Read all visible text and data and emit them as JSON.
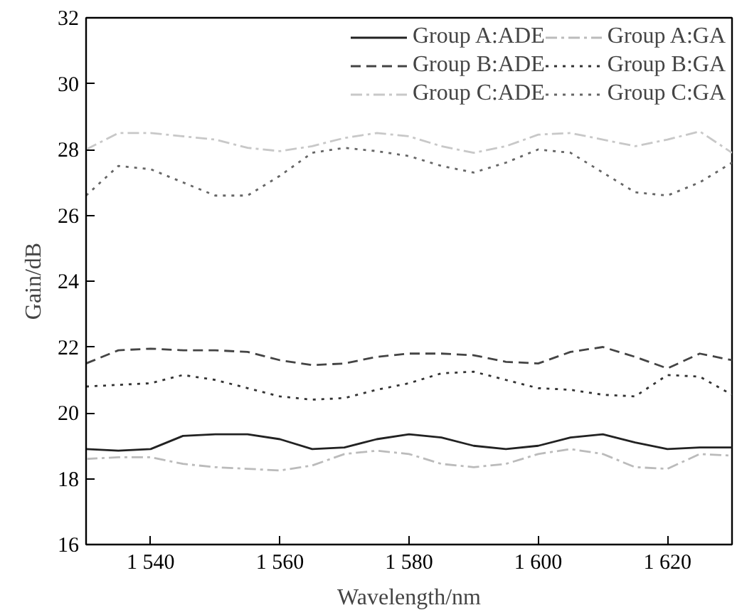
{
  "chart_data": {
    "type": "line",
    "xlabel": "Wavelength/nm",
    "ylabel": "Gain/dB",
    "x": [
      1530,
      1535,
      1540,
      1545,
      1550,
      1555,
      1560,
      1565,
      1570,
      1575,
      1580,
      1585,
      1590,
      1595,
      1600,
      1605,
      1610,
      1615,
      1620,
      1625,
      1630
    ],
    "series": [
      {
        "name": "Group A:ADE",
        "color": "#222222",
        "line_style": "solid",
        "values": [
          18.9,
          18.85,
          18.9,
          19.3,
          19.35,
          19.35,
          19.2,
          18.9,
          18.95,
          19.2,
          19.35,
          19.25,
          19.0,
          18.9,
          19.0,
          19.25,
          19.35,
          19.1,
          18.9,
          18.95,
          18.95
        ]
      },
      {
        "name": "Group B:ADE",
        "color": "#444444",
        "line_style": "dashed",
        "values": [
          21.5,
          21.9,
          21.95,
          21.9,
          21.9,
          21.85,
          21.6,
          21.45,
          21.5,
          21.7,
          21.8,
          21.8,
          21.75,
          21.55,
          21.5,
          21.85,
          22.0,
          21.7,
          21.35,
          21.8,
          21.6
        ]
      },
      {
        "name": "Group C:ADE",
        "color": "#c8c8c8",
        "line_style": "dashdot",
        "values": [
          28.0,
          28.5,
          28.5,
          28.4,
          28.3,
          28.05,
          27.95,
          28.1,
          28.35,
          28.5,
          28.4,
          28.1,
          27.9,
          28.1,
          28.45,
          28.5,
          28.3,
          28.1,
          28.3,
          28.55,
          27.9
        ]
      },
      {
        "name": "Group A:GA",
        "color": "#bbbbbb",
        "line_style": "dashdot",
        "values": [
          18.6,
          18.65,
          18.65,
          18.45,
          18.35,
          18.3,
          18.25,
          18.4,
          18.75,
          18.85,
          18.75,
          18.45,
          18.35,
          18.45,
          18.75,
          18.9,
          18.75,
          18.35,
          18.3,
          18.75,
          18.7
        ]
      },
      {
        "name": "Group B:GA",
        "color": "#333333",
        "line_style": "dotted",
        "values": [
          20.8,
          20.85,
          20.9,
          21.15,
          21.0,
          20.75,
          20.5,
          20.4,
          20.45,
          20.7,
          20.9,
          21.2,
          21.25,
          21.0,
          20.75,
          20.7,
          20.55,
          20.5,
          21.15,
          21.1,
          20.55
        ]
      },
      {
        "name": "Group C:GA",
        "color": "#666666",
        "line_style": "dotted",
        "values": [
          26.6,
          27.5,
          27.4,
          27.0,
          26.6,
          26.6,
          27.2,
          27.9,
          28.05,
          27.95,
          27.8,
          27.5,
          27.3,
          27.6,
          28.0,
          27.9,
          27.3,
          26.7,
          26.6,
          27.0,
          27.6
        ]
      }
    ],
    "xlim": [
      1530,
      1630
    ],
    "xticks": [
      {
        "value": 1540,
        "label": "1 540"
      },
      {
        "value": 1560,
        "label": "1 560"
      },
      {
        "value": 1580,
        "label": "1 580"
      },
      {
        "value": 1600,
        "label": "1 600"
      },
      {
        "value": 1620,
        "label": "1 620"
      }
    ],
    "ylim": [
      16,
      32
    ],
    "yticks": [
      16,
      18,
      20,
      22,
      24,
      26,
      28,
      30,
      32
    ],
    "grid": false,
    "legend": "top right"
  }
}
